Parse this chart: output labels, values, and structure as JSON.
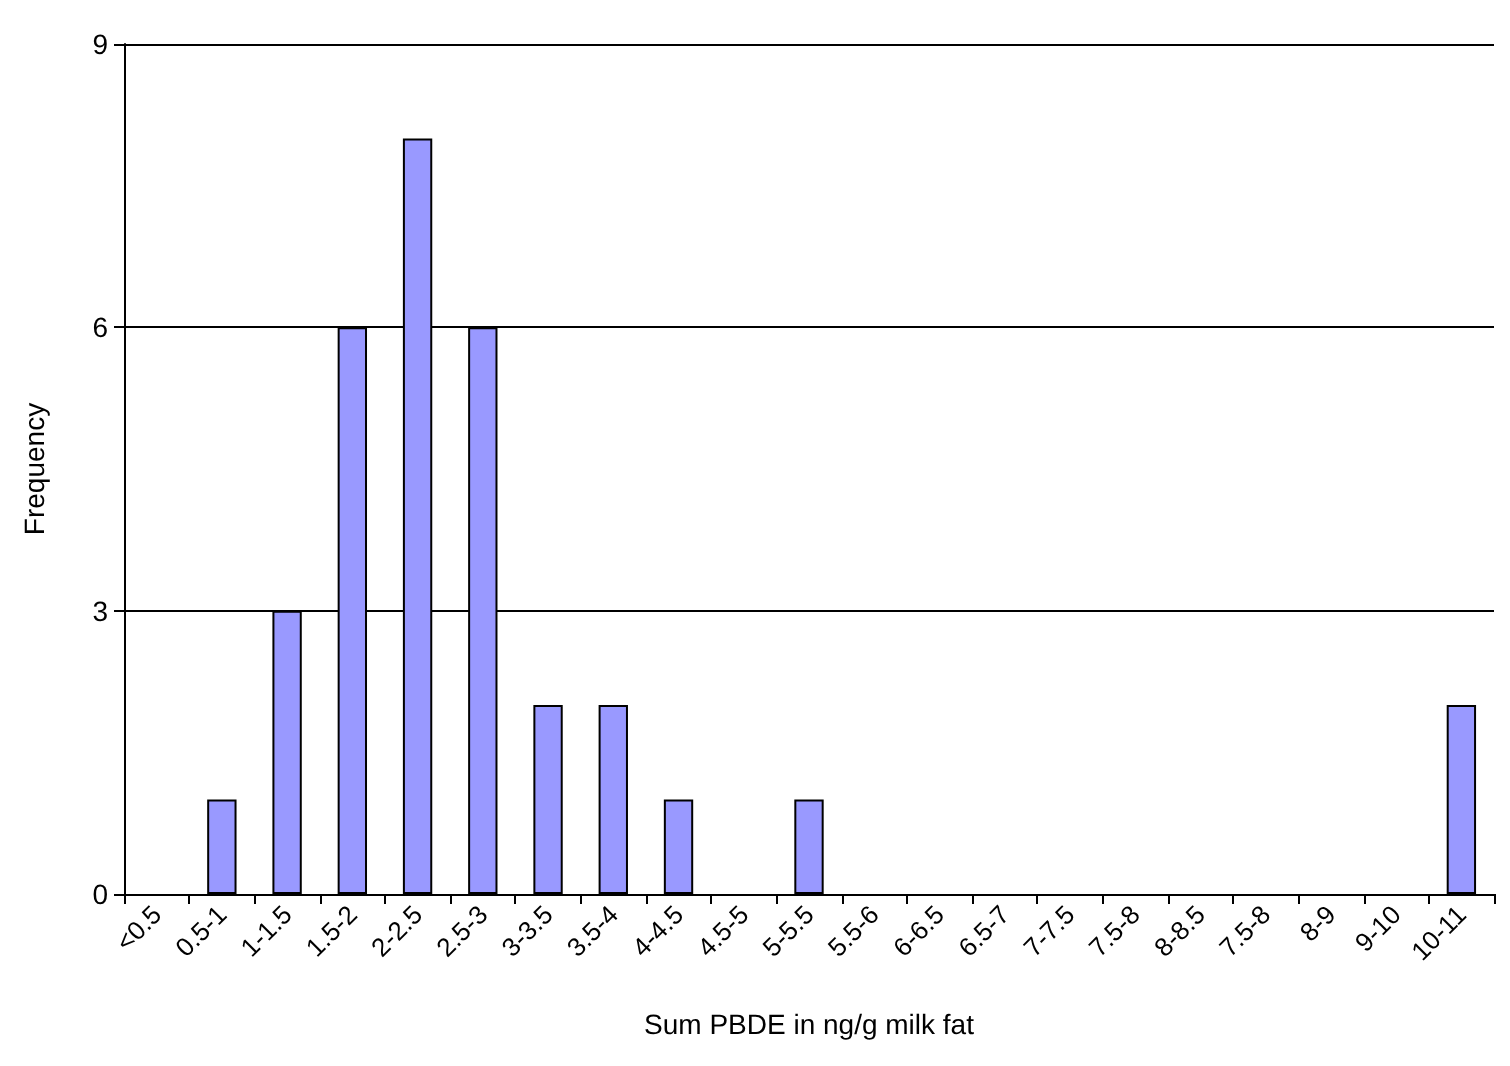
{
  "chart_data": {
    "type": "bar",
    "xlabel": "Sum PBDE in ng/g milk fat",
    "ylabel": "Frequency",
    "categories": [
      "<0.5",
      "0.5-1",
      "1-1.5",
      "1.5-2",
      "2-2.5",
      "2.5-3",
      "3-3.5",
      "3.5-4",
      "4-4.5",
      "4.5-5",
      "5-5.5",
      "5.5-6",
      "6-6.5",
      "6.5-7",
      "7-7.5",
      "7.5-8",
      "8-8.5",
      "7.5-8",
      "8-9",
      "9-10",
      "10-11"
    ],
    "values": [
      0,
      1,
      3,
      6,
      8,
      6,
      2,
      2,
      1,
      0,
      1,
      0,
      0,
      0,
      0,
      0,
      0,
      0,
      0,
      0,
      2
    ],
    "color": "#9999ff",
    "ylim": [
      0,
      9
    ],
    "yticks": [
      0,
      3,
      6,
      9
    ],
    "grid": "y"
  }
}
